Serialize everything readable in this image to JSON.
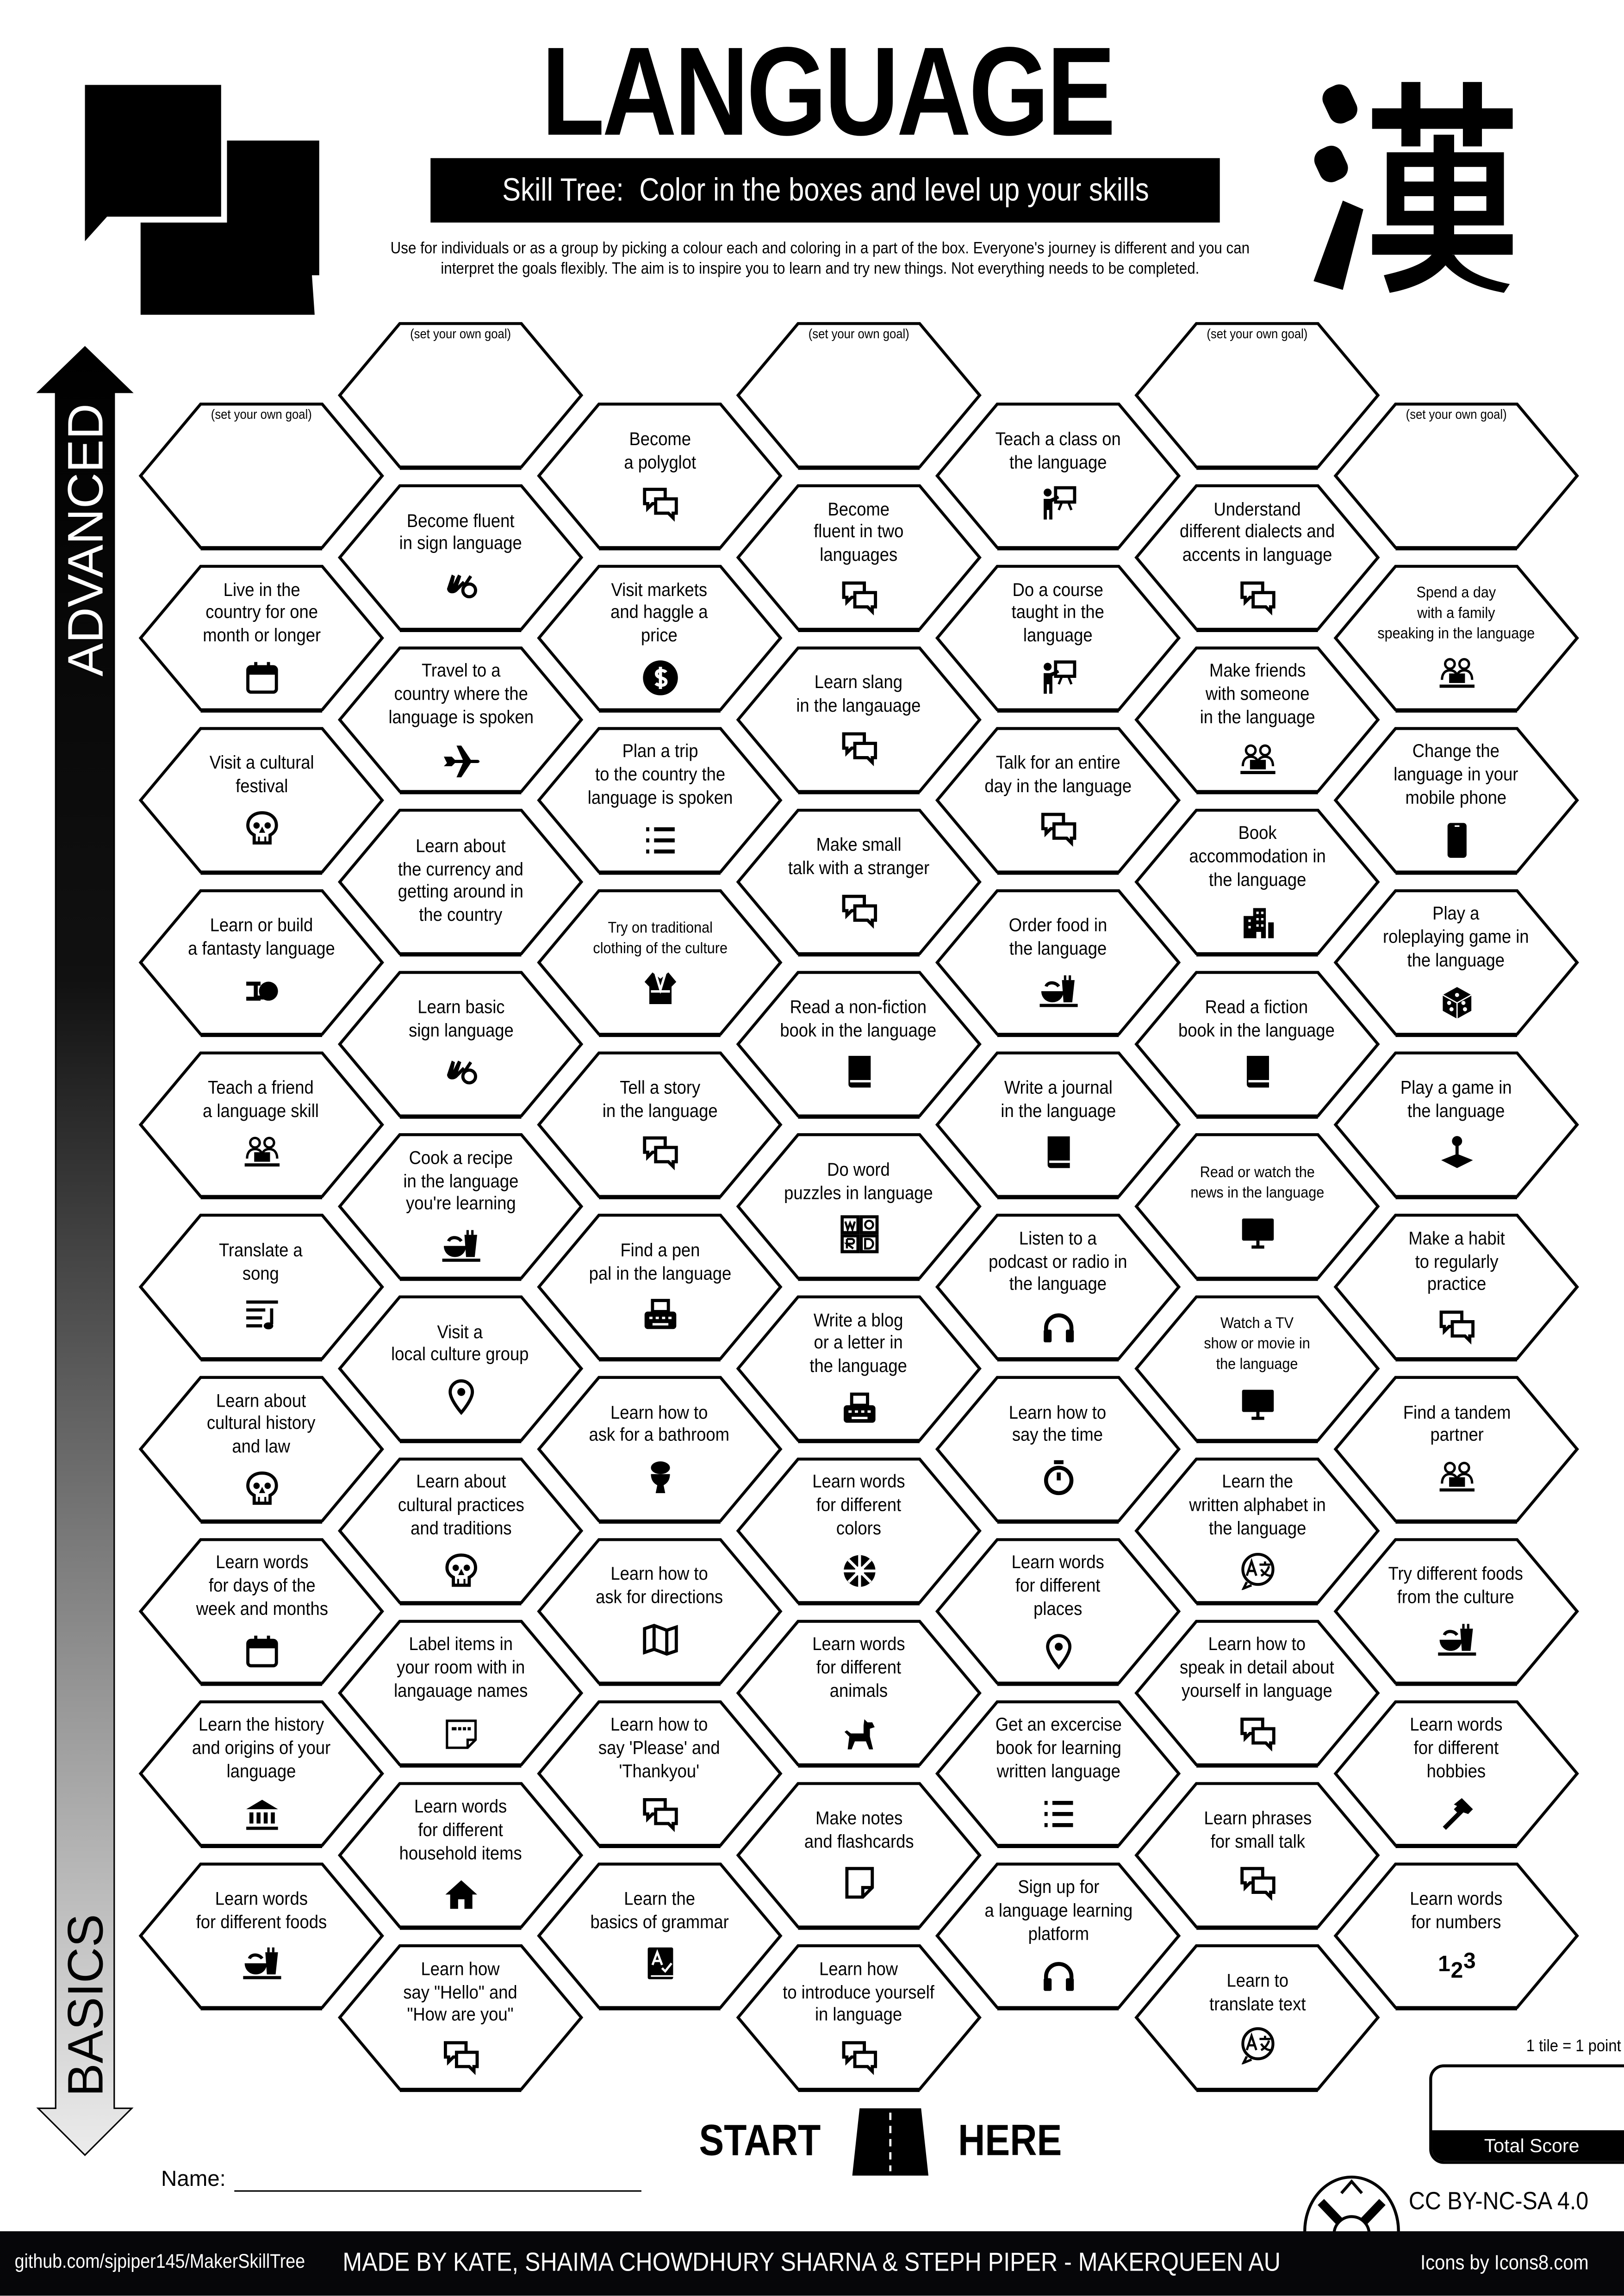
{
  "header": {
    "title": "LANGUAGE",
    "subtitle": "Skill Tree:  Color in the boxes and level up your skills",
    "description_line1": "Use for individuals or as a group by picking a colour each and coloring in a part of the box.  Everyone's journey is different and you can",
    "description_line2": "interpret the goals flexibly.  The aim is to inspire you to learn and try new things. Not everything needs to be completed.",
    "logo_icon": "speech-bubbles-icon",
    "kanji_logo": "漢"
  },
  "axis": {
    "top_label": "ADVANCED",
    "bottom_label": "BASICS"
  },
  "goal_placeholder": "(set your own goal)",
  "columns": [
    {
      "items": [
        {
          "goal": true,
          "label": "",
          "icon": ""
        },
        {
          "label": "Live in the\ncountry for one\nmonth or longer",
          "icon": "calendar-icon"
        },
        {
          "label": "Visit a cultural\nfestival",
          "icon": "skull-icon"
        },
        {
          "label": "Learn or build\na fantasty language",
          "icon": "spaceship-icon"
        },
        {
          "label": "Teach a friend\na language skill",
          "icon": "people-laptop-icon"
        },
        {
          "label": "Translate a\nsong",
          "icon": "music-list-icon"
        },
        {
          "label": "Learn about\ncultural history\nand law",
          "icon": "skull-icon"
        },
        {
          "label": "Learn words\nfor days of the\nweek and months",
          "icon": "calendar-icon"
        },
        {
          "label": "Learn the history\nand origins of your\nlanguage",
          "icon": "bank-icon"
        },
        {
          "label": "Learn words\nfor different foods",
          "icon": "food-icon"
        }
      ]
    },
    {
      "items": [
        {
          "goal": true,
          "label": "",
          "icon": ""
        },
        {
          "label": "Become fluent\nin sign language",
          "icon": "sign-hands-icon"
        },
        {
          "label": "Travel to a\ncountry where the\nlanguage is spoken",
          "icon": "airplane-icon"
        },
        {
          "label": "Learn about\nthe currency and\ngetting around in\nthe country",
          "icon": ""
        },
        {
          "label": "Learn basic\nsign language",
          "icon": "sign-hands-icon"
        },
        {
          "label": "Cook a recipe\nin the language\nyou're learning",
          "icon": "food-icon"
        },
        {
          "label": "Visit a\nlocal culture group",
          "icon": "location-pin-icon"
        },
        {
          "label": "Learn about\ncultural practices\nand traditions",
          "icon": "skull-icon"
        },
        {
          "label": "Label items in\nyour room with in\nlangauage names",
          "icon": "door-label-icon"
        },
        {
          "label": "Learn words\nfor different\nhousehold items",
          "icon": "house-icon"
        },
        {
          "label": "Learn how\nsay \"Hello\" and\n\"How are you\"",
          "icon": "chat-icon"
        }
      ]
    },
    {
      "items": [
        {
          "label": "Become\na polyglot",
          "icon": "chat-icon"
        },
        {
          "label": "Visit markets\nand haggle a\nprice",
          "icon": "dollar-coin-icon"
        },
        {
          "label": "Plan a trip\nto the country the\nlanguage is spoken",
          "icon": "list-icon"
        },
        {
          "label": "Try on traditional\nclothing of the culture",
          "icon": "kimono-icon",
          "small": true
        },
        {
          "label": "Tell a story\nin the language",
          "icon": "chat-icon"
        },
        {
          "label": "Find a pen\npal in the language",
          "icon": "typewriter-icon"
        },
        {
          "label": "Learn how to\nask for a bathroom",
          "icon": "toilet-icon"
        },
        {
          "label": "Learn how to\nask for directions",
          "icon": "map-icon"
        },
        {
          "label": "Learn how to\nsay 'Please' and\n'Thankyou'",
          "icon": "chat-icon"
        },
        {
          "label": "Learn the\nbasics of grammar",
          "icon": "grammar-book-icon"
        }
      ]
    },
    {
      "items": [
        {
          "goal": true,
          "label": "",
          "icon": ""
        },
        {
          "label": "Become\nfluent in two\nlanguages",
          "icon": "chat-icon"
        },
        {
          "label": "Learn slang\nin the langauage",
          "icon": "chat-icon"
        },
        {
          "label": "Make small\ntalk with a stranger",
          "icon": "chat-icon"
        },
        {
          "label": "Read a non-fiction\nbook in the language",
          "icon": "book-icon"
        },
        {
          "label": "Do word\npuzzles in language",
          "icon": "word-puzzle-icon"
        },
        {
          "label": "Write a blog\nor a letter in\nthe language",
          "icon": "typewriter-icon"
        },
        {
          "label": "Learn words\nfor different\ncolors",
          "icon": "color-wheel-icon"
        },
        {
          "label": "Learn words\nfor different\nanimals",
          "icon": "dog-icon"
        },
        {
          "label": "Make notes\nand flashcards",
          "icon": "note-icon"
        },
        {
          "label": "Learn how\nto introduce yourself\nin language",
          "icon": "chat-icon"
        }
      ]
    },
    {
      "items": [
        {
          "label": "Teach a class on\nthe language",
          "icon": "teacher-icon"
        },
        {
          "label": "Do a course\ntaught in the\nlanguage",
          "icon": "teacher-icon"
        },
        {
          "label": "Talk for an entire\nday in the language",
          "icon": "chat-icon"
        },
        {
          "label": "Order food in\nthe language",
          "icon": "food-icon"
        },
        {
          "label": "Write a journal\nin the language",
          "icon": "book-icon"
        },
        {
          "label": "Listen to a\npodcast or radio in\nthe language",
          "icon": "headphones-icon"
        },
        {
          "label": "Learn how to\nsay the time",
          "icon": "timer-icon"
        },
        {
          "label": "Learn words\nfor different\nplaces",
          "icon": "location-pin-icon"
        },
        {
          "label": "Get an excercise\nbook for learning\nwritten language",
          "icon": "list-icon"
        },
        {
          "label": "Sign up for\na language learning\nplatform",
          "icon": "headphones-icon"
        }
      ]
    },
    {
      "items": [
        {
          "goal": true,
          "label": "",
          "icon": ""
        },
        {
          "label": "Understand\ndifferent dialects and\naccents in language",
          "icon": "chat-icon"
        },
        {
          "label": "Make friends\nwith someone\nin the language",
          "icon": "people-laptop-icon"
        },
        {
          "label": "Book\naccommodation in\nthe language",
          "icon": "building-icon"
        },
        {
          "label": "Read a fiction\nbook in the language",
          "icon": "book-icon"
        },
        {
          "label": "Read or watch the\nnews in the language",
          "icon": "tv-icon",
          "small": true
        },
        {
          "label": "Watch a TV\nshow or movie in\nthe language",
          "icon": "tv-icon",
          "small": true
        },
        {
          "label": "Learn the\nwritten alphabet in\nthe language",
          "icon": "translate-icon"
        },
        {
          "label": "Learn how to\nspeak in detail about\nyourself in language",
          "icon": "chat-icon"
        },
        {
          "label": "Learn phrases\nfor small talk",
          "icon": "chat-icon"
        },
        {
          "label": "Learn to\ntranslate text",
          "icon": "translate-icon"
        }
      ]
    },
    {
      "items": [
        {
          "goal": true,
          "label": "",
          "icon": ""
        },
        {
          "label": "Spend a day\nwith a family\nspeaking in the language",
          "icon": "people-laptop-icon",
          "small": true
        },
        {
          "label": "Change the\nlanguage in your\nmobile phone",
          "icon": "mobile-phone-icon"
        },
        {
          "label": "Play a\nroleplaying game in\nthe language",
          "icon": "dice-icon"
        },
        {
          "label": "Play a game in\nthe language",
          "icon": "joystick-icon"
        },
        {
          "label": "Make a habit\nto regularly\npractice",
          "icon": "chat-icon"
        },
        {
          "label": "Find a tandem\npartner",
          "icon": "people-laptop-icon"
        },
        {
          "label": "Try different foods\nfrom the culture",
          "icon": "food-icon"
        },
        {
          "label": "Learn words\nfor different\nhobbies",
          "icon": "hammer-icon"
        },
        {
          "label": "Learn words\nfor numbers",
          "icon": "numbers-icon"
        }
      ]
    }
  ],
  "start": {
    "left": "START",
    "right": "HERE",
    "icon": "road-icon"
  },
  "name_label": "Name:",
  "score": {
    "note": "1 tile = 1 point",
    "label": "Total Score"
  },
  "license": "CC BY-NC-SA 4.0",
  "footer": {
    "repo": "github.com/sjpiper145/MakerSkillTree",
    "credits": "MADE BY KATE, SHAIMA CHOWDHURY SHARNA & STEPH PIPER  -  MAKERQUEEN AU",
    "icons_credit": "Icons by Icons8.com",
    "logo_icon": "maker-tools-logo-icon"
  },
  "colors": {
    "ink": "#000000",
    "paper": "#ffffff",
    "footer": "#060609",
    "arrow_fade": "#e6e6e6"
  }
}
